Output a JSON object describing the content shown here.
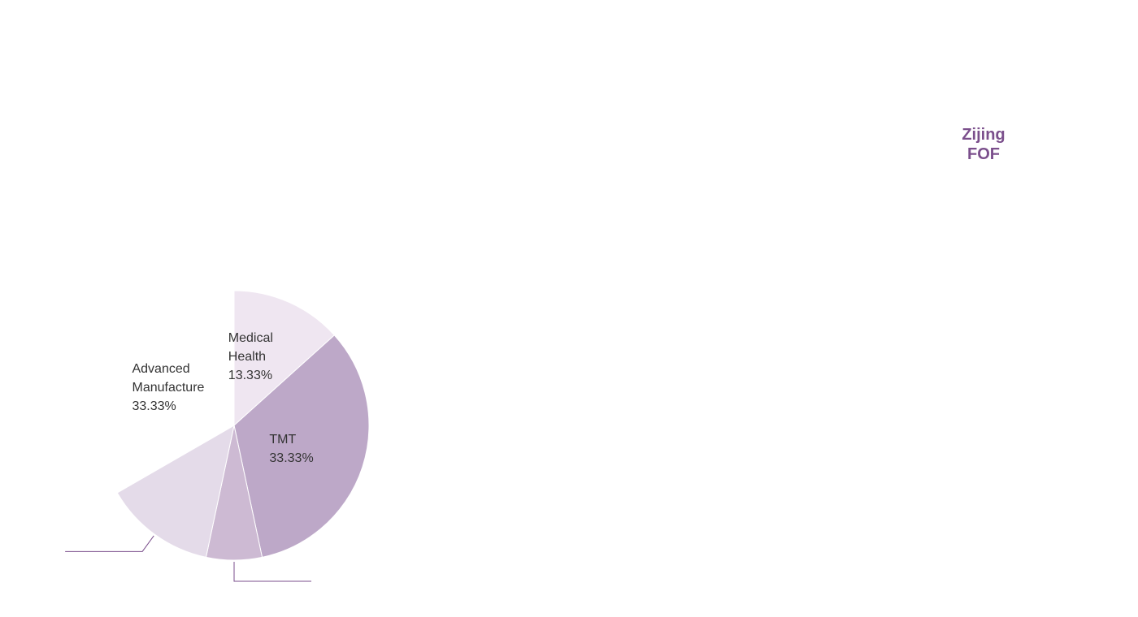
{
  "chart_data": {
    "type": "pie",
    "title": "Zijing FOF",
    "categories": [
      "Medical Health",
      "TMT",
      null,
      null,
      "Advanced Manufacture"
    ],
    "values": [
      13.33,
      33.33,
      6.67,
      13.33,
      33.33
    ],
    "value_labels": [
      "13.33%",
      "33.33%",
      null,
      null,
      "33.33%"
    ],
    "colors": [
      "#efe6f1",
      "#bda8c8",
      "#cdbad3",
      "#e4dbe9",
      "#ffffff"
    ]
  }
}
